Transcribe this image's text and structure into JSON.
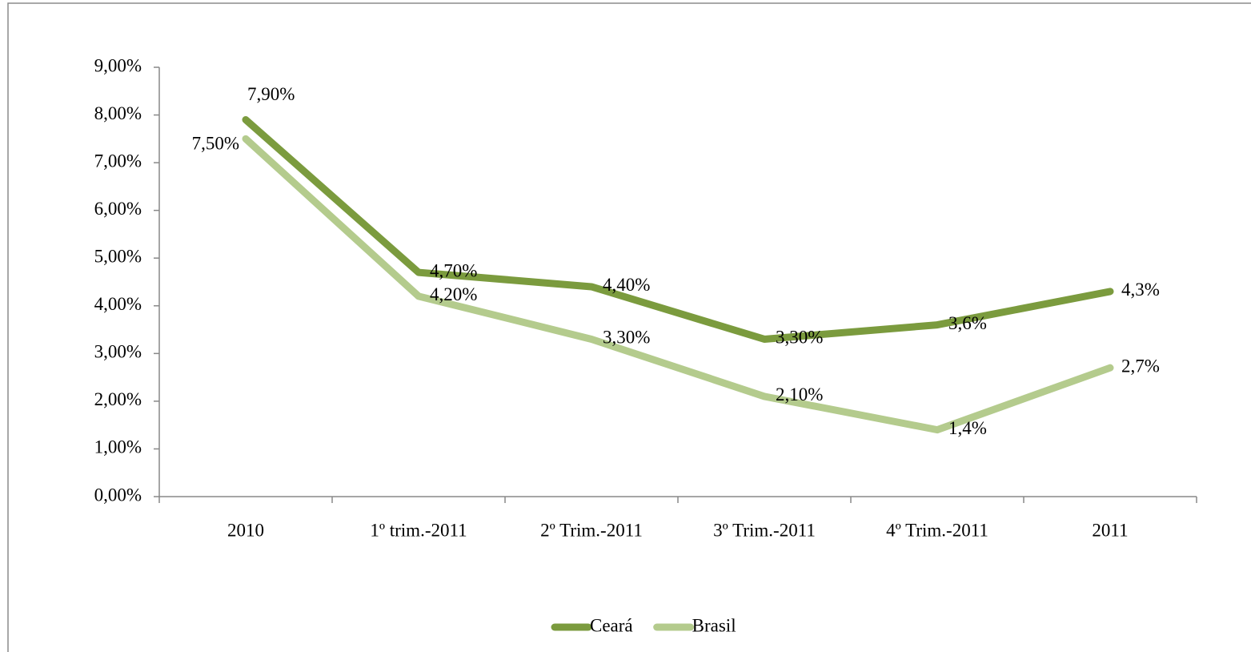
{
  "chart_data": {
    "type": "line",
    "categories": [
      "2010",
      "1º trim.-2011",
      "2º Trim.-2011",
      "3º Trim.-2011",
      "4º Trim.-2011",
      "2011"
    ],
    "series": [
      {
        "name": "Ceará",
        "color": "#7b9b3e",
        "values": [
          7.9,
          4.7,
          4.4,
          3.3,
          3.6,
          4.3
        ],
        "value_labels": [
          "7,90%",
          "4,70%",
          "4,40%",
          "3,30%",
          "3,6%",
          "4,3%"
        ]
      },
      {
        "name": "Brasil",
        "color": "#b4cb8d",
        "values": [
          7.5,
          4.2,
          3.3,
          2.1,
          1.4,
          2.7
        ],
        "value_labels": [
          "7,50%",
          "4,20%",
          "3,30%",
          "2,10%",
          "1,4%",
          "2,7%"
        ]
      }
    ],
    "ylim": [
      0,
      9
    ],
    "yticks": [
      {
        "value": 0,
        "label": "0,00%"
      },
      {
        "value": 1,
        "label": "1,00%"
      },
      {
        "value": 2,
        "label": "2,00%"
      },
      {
        "value": 3,
        "label": "3,00%"
      },
      {
        "value": 4,
        "label": "4,00%"
      },
      {
        "value": 5,
        "label": "5,00%"
      },
      {
        "value": 6,
        "label": "6,00%"
      },
      {
        "value": 7,
        "label": "7,00%"
      },
      {
        "value": 8,
        "label": "8,00%"
      },
      {
        "value": 9,
        "label": "9,00%"
      }
    ],
    "legend": "bottom"
  }
}
